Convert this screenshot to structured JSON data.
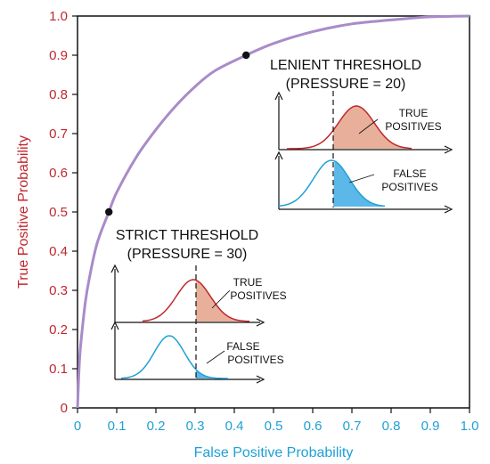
{
  "chart_data": {
    "type": "line",
    "title": "",
    "xlabel": "False Positive Probability",
    "ylabel": "True Positive Probability",
    "xlim": [
      0,
      1
    ],
    "ylim": [
      0,
      1
    ],
    "x_ticks": [
      "0",
      "0.1",
      "0.2",
      "0.3",
      "0.4",
      "0.5",
      "0.6",
      "0.7",
      "0.8",
      "0.9",
      "1.0"
    ],
    "y_ticks": [
      "0",
      "0.1",
      "0.2",
      "0.3",
      "0.4",
      "0.5",
      "0.6",
      "0.7",
      "0.8",
      "0.9",
      "1.0"
    ],
    "grid": false,
    "series": [
      {
        "x": [
          0,
          0.005,
          0.01,
          0.02,
          0.03,
          0.05,
          0.08,
          0.1,
          0.15,
          0.2,
          0.25,
          0.3,
          0.35,
          0.43,
          0.5,
          0.6,
          0.7,
          0.8,
          0.9,
          1.0
        ],
        "y": [
          0,
          0.12,
          0.18,
          0.27,
          0.33,
          0.42,
          0.5,
          0.55,
          0.64,
          0.71,
          0.77,
          0.82,
          0.86,
          0.9,
          0.93,
          0.96,
          0.98,
          0.99,
          0.998,
          1.0
        ],
        "color": "#a98bc9"
      }
    ],
    "points": [
      {
        "x": 0.08,
        "y": 0.5
      },
      {
        "x": 0.43,
        "y": 0.9
      }
    ],
    "annotations": [
      {
        "id": "strict",
        "title_lines": [
          "STRICT THRESHOLD",
          "(PRESSURE = 30)"
        ],
        "true_label": [
          "TRUE",
          "POSITIVES"
        ],
        "false_label": [
          "FALSE",
          "POSITIVES"
        ]
      },
      {
        "id": "lenient",
        "title_lines": [
          "LENIENT THRESHOLD",
          "(PRESSURE = 20)"
        ],
        "true_label": [
          "TRUE",
          "POSITIVES"
        ],
        "false_label": [
          "FALSE",
          "POSITIVES"
        ]
      }
    ],
    "colors": {
      "curve": "#a98bc9",
      "y_text": "#c0272d",
      "x_text": "#1ea0d6",
      "true_curve": "#c0272d",
      "true_fill": "#e8b09a",
      "false_curve": "#1ea0d6",
      "false_fill": "#5bb8e8"
    }
  }
}
